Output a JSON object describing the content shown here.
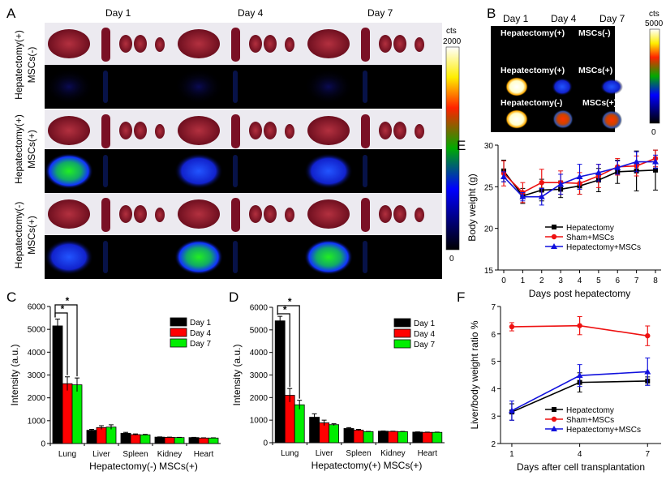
{
  "panel_labels": {
    "a": "A",
    "b": "B",
    "c": "C",
    "d": "D",
    "e": "E",
    "f": "F"
  },
  "panel_a": {
    "days": [
      "Day 1",
      "Day 4",
      "Day 7"
    ],
    "rows": [
      "Hepatectomy(+)\nMSCs(-)",
      "Hepatectomy(+)\nMSCs(+)",
      "Hepatectomy(-)\nMSCs(+)"
    ],
    "row_line1": [
      "Hepatectomy(+)",
      "Hepatectomy(+)",
      "Hepatectomy(-)"
    ],
    "row_line2": [
      "MSCs(-)",
      "MSCs(+)",
      "MSCs(+)"
    ],
    "colorbar": {
      "unit": "cts",
      "max": "2000",
      "min": "0"
    }
  },
  "panel_b": {
    "days": [
      "Day 1",
      "Day 4",
      "Day 7"
    ],
    "groups": [
      {
        "left": "Hepatectomy(+)",
        "right": "MSCs(-)"
      },
      {
        "left": "Hepatectomy(+)",
        "right": "MSCs(+)"
      },
      {
        "left": "Hepatectomy(-)",
        "right": "MSCs(+)"
      }
    ],
    "colorbar": {
      "unit": "cts",
      "max": "5000",
      "min": "0"
    }
  },
  "chart_data": [
    {
      "id": "C",
      "type": "bar",
      "categories": [
        "Lung",
        "Liver",
        "Spleen",
        "Kidney",
        "Heart"
      ],
      "xlabel": "Hepatectomy(-)  MSCs(+)",
      "ylabel": "Intensity (a.u.)",
      "ylim": [
        0,
        6000
      ],
      "yticks": [
        0,
        1000,
        2000,
        3000,
        4000,
        5000,
        6000
      ],
      "legend": "top-right",
      "series": [
        {
          "name": "Day 1",
          "color": "#000000",
          "values": [
            5150,
            580,
            450,
            280,
            260
          ],
          "errors": [
            300,
            40,
            40,
            10,
            10
          ]
        },
        {
          "name": "Day 4",
          "color": "#ff0000",
          "values": [
            2620,
            700,
            390,
            270,
            240
          ],
          "errors": [
            300,
            80,
            30,
            10,
            10
          ]
        },
        {
          "name": "Day 7",
          "color": "#00ee00",
          "values": [
            2570,
            720,
            380,
            260,
            240
          ],
          "errors": [
            300,
            100,
            20,
            10,
            10
          ]
        }
      ],
      "annotations": [
        "*",
        "*"
      ]
    },
    {
      "id": "D",
      "type": "bar",
      "categories": [
        "Lung",
        "Liver",
        "Spleen",
        "Kidney",
        "Heart"
      ],
      "xlabel": "Hepatectomy(+)  MSCs(+)",
      "ylabel": "Intensity (a.u.)",
      "ylim": [
        0,
        6000
      ],
      "yticks": [
        0,
        1000,
        2000,
        3000,
        4000,
        5000,
        6000
      ],
      "legend": "top-right",
      "series": [
        {
          "name": "Day 1",
          "color": "#000000",
          "values": [
            5400,
            1130,
            630,
            510,
            470
          ],
          "errors": [
            200,
            150,
            40,
            10,
            10
          ]
        },
        {
          "name": "Day 4",
          "color": "#ff0000",
          "values": [
            2100,
            880,
            560,
            500,
            460
          ],
          "errors": [
            300,
            120,
            30,
            10,
            10
          ]
        },
        {
          "name": "Day 7",
          "color": "#00ee00",
          "values": [
            1680,
            800,
            490,
            490,
            460
          ],
          "errors": [
            200,
            40,
            10,
            10,
            10
          ]
        }
      ],
      "annotations": [
        "*",
        "*"
      ]
    },
    {
      "id": "E",
      "type": "line",
      "x": [
        0,
        1,
        2,
        3,
        4,
        5,
        6,
        7,
        8
      ],
      "xlabel": "Days post hepatectomy",
      "ylabel": "Body weight (g)",
      "xlim": [
        -0.3,
        8.3
      ],
      "ylim": [
        15,
        30
      ],
      "yticks": [
        15,
        20,
        25,
        30
      ],
      "legend": "bottom-center",
      "series": [
        {
          "name": "Hepatectomy",
          "color": "#000000",
          "marker": "square",
          "values": [
            26.9,
            23.9,
            24.6,
            24.7,
            25.1,
            25.8,
            26.8,
            26.9,
            27.0
          ],
          "errors": [
            1.3,
            0.9,
            1.3,
            1.0,
            1.0,
            1.4,
            1.4,
            2.4,
            2.4
          ]
        },
        {
          "name": "Sham+MSCs",
          "color": "#ee1111",
          "marker": "circle",
          "values": [
            26.6,
            24.3,
            25.5,
            25.5,
            25.4,
            26.3,
            27.4,
            27.5,
            28.4
          ],
          "errors": [
            1.5,
            1.2,
            1.6,
            1.4,
            1.3,
            1.4,
            1.0,
            1.2,
            1.0
          ]
        },
        {
          "name": "Hepatectomy+MSCs",
          "color": "#1111dd",
          "marker": "triangle",
          "values": [
            26.2,
            23.8,
            23.8,
            25.3,
            26.2,
            26.7,
            27.3,
            28.0,
            28.0
          ],
          "errors": [
            0.6,
            0.5,
            1.0,
            1.2,
            1.5,
            1.0,
            0.8,
            1.2,
            0.8
          ]
        }
      ]
    },
    {
      "id": "F",
      "type": "line",
      "x": [
        1,
        4,
        7
      ],
      "xlabel": "Days after cell transplantation",
      "ylabel": "Liver/body weight ratio %",
      "xlim": [
        0.5,
        7.6
      ],
      "ylim": [
        2,
        7
      ],
      "yticks": [
        2,
        3,
        4,
        5,
        6,
        7
      ],
      "legend": "bottom-center",
      "series": [
        {
          "name": "Hepatectomy",
          "color": "#000000",
          "marker": "square",
          "values": [
            3.15,
            4.23,
            4.28
          ],
          "errors": [
            0.3,
            0.35,
            0.15
          ]
        },
        {
          "name": "Sham+MSCs",
          "color": "#ee1111",
          "marker": "circle",
          "values": [
            6.26,
            6.3,
            5.93
          ],
          "errors": [
            0.15,
            0.33,
            0.36
          ]
        },
        {
          "name": "Hepatectomy+MSCs",
          "color": "#1111dd",
          "marker": "triangle",
          "values": [
            3.2,
            4.48,
            4.62
          ],
          "errors": [
            0.35,
            0.4,
            0.5
          ]
        }
      ]
    }
  ]
}
